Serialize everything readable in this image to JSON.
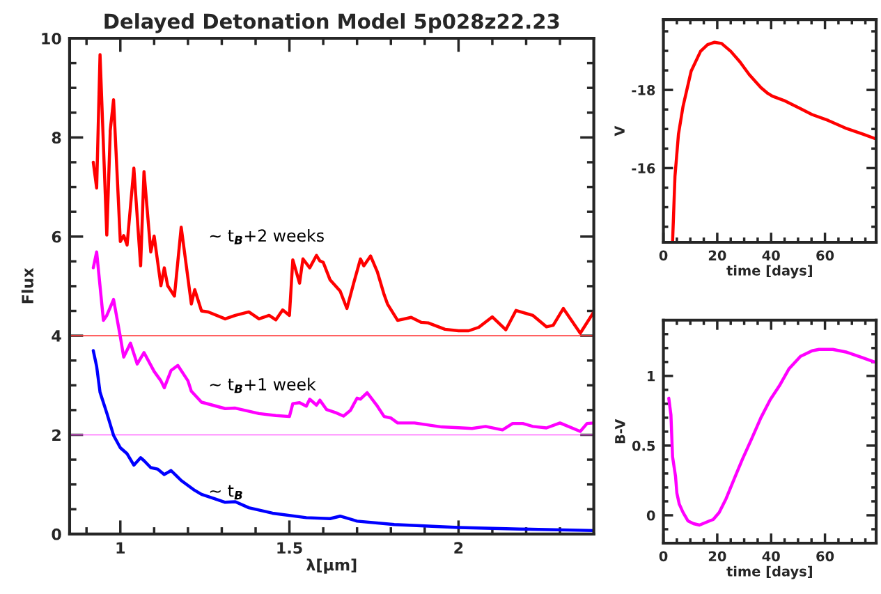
{
  "chart_data": [
    {
      "type": "line",
      "title": "Delayed Detonation Model 5p028z22.23",
      "xlabel": "λ[μm]",
      "ylabel": "Flux",
      "grid": false,
      "legend": false,
      "xlim": [
        0.85,
        2.4
      ],
      "xticks": [
        {
          "value": 0.9,
          "label": null
        },
        {
          "value": 1,
          "label": "1"
        },
        {
          "value": 1.1,
          "label": null
        },
        {
          "value": 1.2,
          "label": null
        },
        {
          "value": 1.3,
          "label": null
        },
        {
          "value": 1.4,
          "label": null
        },
        1.5,
        {
          "value": 1.6,
          "label": null
        },
        {
          "value": 1.7,
          "label": null
        },
        {
          "value": 1.8,
          "label": null
        },
        {
          "value": 1.9,
          "label": null
        },
        {
          "value": 2,
          "label": "2"
        },
        {
          "value": 2.1,
          "label": null
        },
        {
          "value": 2.2,
          "label": null
        },
        {
          "value": 2.3,
          "label": null
        }
      ],
      "ylim": [
        0,
        10
      ],
      "yticks": [
        0,
        {
          "value": 0.5,
          "label": null
        },
        {
          "value": 1,
          "label": null
        },
        {
          "value": 1.5,
          "label": null
        },
        2,
        {
          "value": 2.5,
          "label": null
        },
        {
          "value": 3,
          "label": null
        },
        {
          "value": 3.5,
          "label": null
        },
        4,
        {
          "value": 4.5,
          "label": null
        },
        {
          "value": 5,
          "label": null
        },
        {
          "value": 5.5,
          "label": null
        },
        6,
        {
          "value": 6.5,
          "label": null
        },
        {
          "value": 7,
          "label": null
        },
        {
          "value": 7.5,
          "label": null
        },
        8,
        {
          "value": 8.5,
          "label": null
        },
        {
          "value": 9,
          "label": null
        },
        {
          "value": 9.5,
          "label": null
        },
        10
      ],
      "ref_lines": [
        {
          "axis": "y",
          "value": 4,
          "color": "#ff4040"
        },
        {
          "axis": "y",
          "value": 2,
          "color": "#ff66ff"
        }
      ],
      "series": [
        {
          "name": "~ t$_{B}$+2 weeks",
          "color": "#ff0000",
          "x": [
            0.92,
            0.93,
            0.94,
            0.96,
            0.97,
            0.97,
            0.98,
            1.0,
            1.01,
            1.02,
            1.04,
            1.06,
            1.07,
            1.09,
            1.1,
            1.12,
            1.13,
            1.14,
            1.16,
            1.18,
            1.21,
            1.22,
            1.24,
            1.26,
            1.31,
            1.34,
            1.38,
            1.41,
            1.44,
            1.46,
            1.48,
            1.5,
            1.51,
            1.53,
            1.54,
            1.56,
            1.58,
            1.59,
            1.6,
            1.62,
            1.65,
            1.67,
            1.69,
            1.71,
            1.72,
            1.74,
            1.76,
            1.78,
            1.79,
            1.82,
            1.86,
            1.89,
            1.91,
            1.96,
            2.0,
            2.03,
            2.06,
            2.1,
            2.14,
            2.17,
            2.22,
            2.26,
            2.28,
            2.31,
            2.36,
            2.4
          ],
          "values": [
            7.5,
            6.98,
            9.67,
            6.03,
            8.08,
            8.13,
            8.76,
            5.9,
            6.02,
            5.83,
            7.38,
            5.41,
            7.31,
            5.69,
            6.01,
            5.01,
            5.37,
            5.01,
            4.8,
            6.19,
            4.64,
            4.93,
            4.5,
            4.48,
            4.34,
            4.41,
            4.48,
            4.34,
            4.41,
            4.32,
            4.52,
            4.41,
            5.53,
            5.06,
            5.55,
            5.37,
            5.62,
            5.51,
            5.48,
            5.13,
            4.9,
            4.55,
            5.06,
            5.55,
            5.41,
            5.61,
            5.29,
            4.83,
            4.64,
            4.31,
            4.37,
            4.27,
            4.26,
            4.13,
            4.1,
            4.1,
            4.17,
            4.38,
            4.12,
            4.51,
            4.41,
            4.18,
            4.21,
            4.55,
            4.05,
            4.48
          ]
        },
        {
          "name": "~ t$_{B}$+1 week",
          "color": "#ff00ff",
          "x": [
            0.92,
            0.93,
            0.95,
            0.96,
            0.98,
            1.0,
            1.01,
            1.03,
            1.05,
            1.07,
            1.1,
            1.12,
            1.13,
            1.15,
            1.17,
            1.2,
            1.21,
            1.24,
            1.31,
            1.34,
            1.41,
            1.46,
            1.5,
            1.51,
            1.53,
            1.55,
            1.56,
            1.58,
            1.59,
            1.61,
            1.64,
            1.66,
            1.68,
            1.7,
            1.71,
            1.73,
            1.76,
            1.78,
            1.8,
            1.82,
            1.87,
            1.95,
            2.04,
            2.08,
            2.13,
            2.16,
            2.19,
            2.22,
            2.26,
            2.3,
            2.36,
            2.38,
            2.4
          ],
          "values": [
            5.37,
            5.69,
            4.31,
            4.41,
            4.73,
            3.98,
            3.57,
            3.85,
            3.43,
            3.66,
            3.28,
            3.09,
            2.95,
            3.3,
            3.4,
            3.09,
            2.88,
            2.66,
            2.53,
            2.54,
            2.43,
            2.39,
            2.37,
            2.63,
            2.65,
            2.58,
            2.72,
            2.6,
            2.7,
            2.51,
            2.44,
            2.38,
            2.49,
            2.74,
            2.72,
            2.85,
            2.58,
            2.37,
            2.34,
            2.24,
            2.24,
            2.16,
            2.13,
            2.17,
            2.1,
            2.23,
            2.23,
            2.17,
            2.14,
            2.24,
            2.07,
            2.23,
            2.24
          ]
        },
        {
          "name": "~ t$_{B}$",
          "color": "#0000ff",
          "x": [
            0.92,
            0.93,
            0.94,
            0.96,
            0.98,
            1.0,
            1.02,
            1.04,
            1.06,
            1.07,
            1.09,
            1.11,
            1.13,
            1.15,
            1.18,
            1.22,
            1.24,
            1.28,
            1.31,
            1.34,
            1.38,
            1.45,
            1.55,
            1.62,
            1.65,
            1.7,
            1.81,
            2.0,
            2.18,
            2.4
          ],
          "values": [
            3.7,
            3.38,
            2.86,
            2.44,
            1.99,
            1.74,
            1.62,
            1.39,
            1.54,
            1.48,
            1.34,
            1.31,
            1.2,
            1.28,
            1.08,
            0.88,
            0.8,
            0.71,
            0.64,
            0.65,
            0.53,
            0.42,
            0.33,
            0.31,
            0.36,
            0.26,
            0.19,
            0.13,
            0.1,
            0.07
          ]
        }
      ]
    },
    {
      "type": "line",
      "xlabel": "time [days]",
      "ylabel": "V",
      "grid": false,
      "legend": false,
      "xlim": [
        0,
        79
      ],
      "xticks": [
        0,
        {
          "value": 5,
          "label": null
        },
        {
          "value": 10,
          "label": null
        },
        {
          "value": 15,
          "label": null
        },
        20,
        {
          "value": 25,
          "label": null
        },
        {
          "value": 30,
          "label": null
        },
        {
          "value": 35,
          "label": null
        },
        40,
        {
          "value": 45,
          "label": null
        },
        {
          "value": 50,
          "label": null
        },
        {
          "value": 55,
          "label": null
        },
        60,
        {
          "value": 65,
          "label": null
        },
        {
          "value": 70,
          "label": null
        },
        {
          "value": 75,
          "label": null
        }
      ],
      "ylim": [
        -14.1,
        -19.8
      ],
      "yticks": [
        {
          "value": -19.5,
          "label": null
        },
        {
          "value": -19,
          "label": null
        },
        {
          "value": -18.5,
          "label": null
        },
        -18,
        {
          "value": -17.5,
          "label": null
        },
        {
          "value": -17,
          "label": null
        },
        {
          "value": -16.5,
          "label": null
        },
        -16,
        {
          "value": -15.5,
          "label": null
        },
        {
          "value": -15,
          "label": null
        },
        {
          "value": -14.5,
          "label": null
        }
      ],
      "series": [
        {
          "color": "#ff0000",
          "x": [
            3.4,
            4.3,
            5.6,
            7.3,
            10.3,
            13.8,
            16.4,
            19.0,
            21.6,
            25.0,
            28.4,
            31.9,
            36.2,
            38.8,
            40.5,
            44.8,
            50.9,
            55.2,
            61.2,
            68.1,
            74.1,
            78.4
          ],
          "values": [
            -14.1,
            -15.79,
            -16.87,
            -17.58,
            -18.48,
            -18.99,
            -19.16,
            -19.22,
            -19.19,
            -18.99,
            -18.72,
            -18.39,
            -18.06,
            -17.91,
            -17.84,
            -17.73,
            -17.52,
            -17.37,
            -17.22,
            -17.01,
            -16.87,
            -16.76
          ]
        }
      ]
    },
    {
      "type": "line",
      "xlabel": "time [days]",
      "ylabel": "B-V",
      "grid": false,
      "legend": false,
      "xlim": [
        0,
        79
      ],
      "xticks": [
        0,
        {
          "value": 5,
          "label": null
        },
        {
          "value": 10,
          "label": null
        },
        {
          "value": 15,
          "label": null
        },
        20,
        {
          "value": 25,
          "label": null
        },
        {
          "value": 30,
          "label": null
        },
        {
          "value": 35,
          "label": null
        },
        40,
        {
          "value": 45,
          "label": null
        },
        {
          "value": 50,
          "label": null
        },
        {
          "value": 55,
          "label": null
        },
        60,
        {
          "value": 65,
          "label": null
        },
        {
          "value": 70,
          "label": null
        },
        {
          "value": 75,
          "label": null
        }
      ],
      "ylim": [
        -0.2,
        1.4
      ],
      "yticks": [
        {
          "value": -0.1,
          "label": null
        },
        0,
        {
          "value": 0.1,
          "label": null
        },
        {
          "value": 0.2,
          "label": null
        },
        {
          "value": 0.3,
          "label": null
        },
        {
          "value": 0.4,
          "label": null
        },
        0.5,
        {
          "value": 0.6,
          "label": null
        },
        {
          "value": 0.7,
          "label": null
        },
        {
          "value": 0.8,
          "label": null
        },
        {
          "value": 0.9,
          "label": null
        },
        1,
        {
          "value": 1.1,
          "label": null
        },
        {
          "value": 1.2,
          "label": null
        },
        {
          "value": 1.3,
          "label": null
        }
      ],
      "series": [
        {
          "color": "#ff00ff",
          "x": [
            2.0,
            2.8,
            3.4,
            4.5,
            5.0,
            5.9,
            7.3,
            9.1,
            11.2,
            13.4,
            15.9,
            18.5,
            20.7,
            23.3,
            26.7,
            29.3,
            32.8,
            36.2,
            39.7,
            43.1,
            46.6,
            50.9,
            55.2,
            57.8,
            62.9,
            68.1,
            74.1,
            78.4
          ],
          "values": [
            0.84,
            0.72,
            0.42,
            0.28,
            0.16,
            0.08,
            0.02,
            -0.04,
            -0.06,
            -0.07,
            -0.05,
            -0.03,
            0.02,
            0.12,
            0.28,
            0.4,
            0.55,
            0.7,
            0.83,
            0.93,
            1.05,
            1.14,
            1.18,
            1.19,
            1.19,
            1.17,
            1.13,
            1.1
          ]
        }
      ]
    }
  ]
}
